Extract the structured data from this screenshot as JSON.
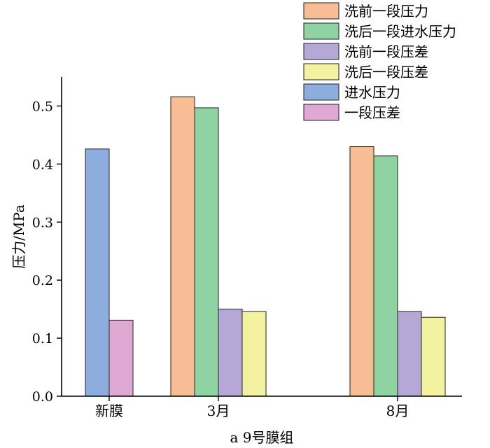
{
  "chart_data": {
    "type": "bar",
    "title": "",
    "xlabel": "a  9号膜组",
    "ylabel": "压力/MPa",
    "ylim": [
      0,
      0.55
    ],
    "yticks": [
      "0.0",
      "0.1",
      "0.2",
      "0.3",
      "0.4",
      "0.5"
    ],
    "ytick_values": [
      0,
      0.1,
      0.2,
      0.3,
      0.4,
      0.5
    ],
    "categories": [
      "新膜",
      "3月",
      "8月"
    ],
    "legend_position": "top-right",
    "series": [
      {
        "name": "洗前一段压力",
        "color": "#F7BD94",
        "values": [
          null,
          0.516,
          0.43
        ]
      },
      {
        "name": "洗后一段进水压力",
        "color": "#8ED3A1",
        "values": [
          null,
          0.497,
          0.414
        ]
      },
      {
        "name": "洗前一段压差",
        "color": "#B6A8D6",
        "values": [
          null,
          0.15,
          0.146
        ]
      },
      {
        "name": "洗后一段压差",
        "color": "#F2F2A0",
        "values": [
          null,
          0.146,
          0.136
        ]
      },
      {
        "name": "进水压力",
        "color": "#8DADDF",
        "values": [
          0.426,
          null,
          null
        ]
      },
      {
        "name": "一段压差",
        "color": "#DFA9D3",
        "values": [
          0.131,
          null,
          null
        ]
      }
    ]
  }
}
